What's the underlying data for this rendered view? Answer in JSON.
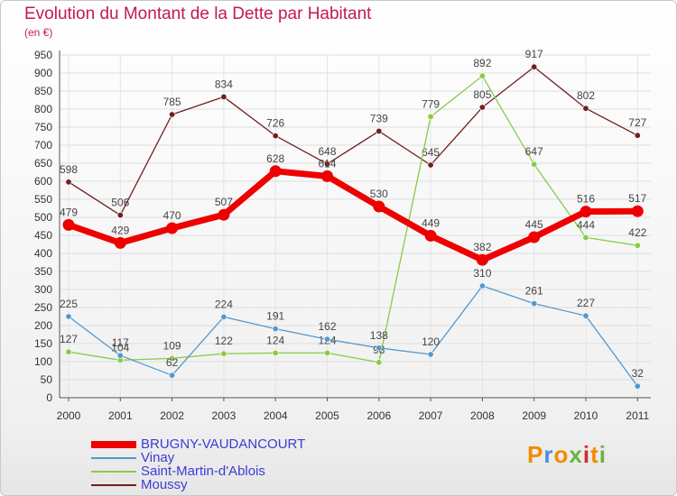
{
  "title": "Evolution du Montant de la Dette par Habitant",
  "unit": "(en €)",
  "logo": {
    "text": "Proxiti",
    "colors": [
      "#f08c00",
      "#4a90d9",
      "#f08c00",
      "#6ab344",
      "#d62828",
      "#f08c00",
      "#6ab344"
    ]
  },
  "chart_data": {
    "type": "line",
    "title": "Evolution du Montant de la Dette par Habitant",
    "ylabel": "(en €)",
    "x": [
      "2000",
      "2001",
      "2002",
      "2003",
      "2004",
      "2005",
      "2006",
      "2007",
      "2008",
      "2009",
      "2010",
      "2011"
    ],
    "ylim": [
      0,
      950
    ],
    "yticks": [
      0,
      50,
      100,
      150,
      200,
      250,
      300,
      350,
      400,
      450,
      500,
      550,
      600,
      650,
      700,
      750,
      800,
      850,
      900,
      950
    ],
    "grid": true,
    "legend": "bottom-left",
    "series": [
      {
        "name": "BRUGNY-VAUDANCOURT",
        "color": "#ee0000",
        "width": 7,
        "values": [
          479,
          429,
          470,
          507,
          628,
          614,
          530,
          449,
          382,
          445,
          516,
          517
        ]
      },
      {
        "name": "Vinay",
        "color": "#5599cc",
        "width": 1.3,
        "values": [
          225,
          117,
          62,
          224,
          191,
          162,
          138,
          120,
          310,
          261,
          227,
          32
        ]
      },
      {
        "name": "Saint-Martin-d'Ablois",
        "color": "#88cc44",
        "width": 1.3,
        "values": [
          127,
          104,
          109,
          122,
          124,
          124,
          98,
          779,
          892,
          647,
          444,
          422
        ]
      },
      {
        "name": "Moussy",
        "color": "#702020",
        "width": 1.3,
        "values": [
          598,
          506,
          785,
          834,
          726,
          648,
          739,
          645,
          805,
          917,
          802,
          727
        ]
      }
    ]
  }
}
